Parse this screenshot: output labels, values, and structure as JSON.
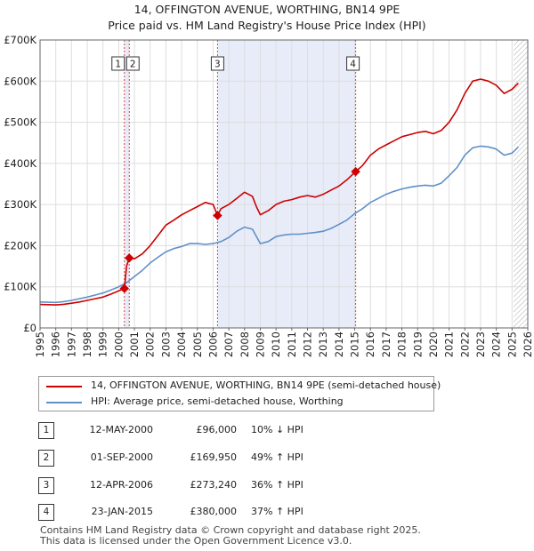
{
  "header": {
    "title": "14, OFFINGTON AVENUE, WORTHING, BN14 9PE",
    "subtitle": "Price paid vs. HM Land Registry's House Price Index (HPI)"
  },
  "chart_data": {
    "type": "line",
    "xlim": [
      1995,
      2026
    ],
    "ylim": [
      0,
      700000
    ],
    "y_ticks": [
      0,
      100000,
      200000,
      300000,
      400000,
      500000,
      600000,
      700000
    ],
    "y_tick_labels": [
      "£0",
      "£100K",
      "£200K",
      "£300K",
      "£400K",
      "£500K",
      "£600K",
      "£700K"
    ],
    "x_ticks": [
      1995,
      1996,
      1997,
      1998,
      1999,
      2000,
      2001,
      2002,
      2003,
      2004,
      2005,
      2006,
      2007,
      2008,
      2009,
      2010,
      2011,
      2012,
      2013,
      2014,
      2015,
      2016,
      2017,
      2018,
      2019,
      2020,
      2021,
      2022,
      2023,
      2024,
      2025,
      2026
    ],
    "x_tick_labels": [
      "1995",
      "1996",
      "1997",
      "1998",
      "1999",
      "2000",
      "2001",
      "2002",
      "2003",
      "2004",
      "2005",
      "2006",
      "2007",
      "2008",
      "2009",
      "2010",
      "2011",
      "2012",
      "2013",
      "2014",
      "2015",
      "2016",
      "2017",
      "2018",
      "2019",
      "2020",
      "2021",
      "2022",
      "2023",
      "2024",
      "2025",
      "2026"
    ],
    "grid": true,
    "shaded_ranges": [
      [
        2000.36,
        2000.67
      ],
      [
        2006.28,
        2015.06
      ]
    ],
    "forecast_start": 2025.1,
    "series": [
      {
        "name": "14, OFFINGTON AVENUE, WORTHING, BN14 9PE (semi-detached house)",
        "color": "#cc0000",
        "points": [
          [
            1995.0,
            57000
          ],
          [
            1995.5,
            56500
          ],
          [
            1996.0,
            56000
          ],
          [
            1996.5,
            57500
          ],
          [
            1997.0,
            60000
          ],
          [
            1997.5,
            63000
          ],
          [
            1998.0,
            67000
          ],
          [
            1998.5,
            71000
          ],
          [
            1999.0,
            75000
          ],
          [
            1999.5,
            82000
          ],
          [
            2000.0,
            90000
          ],
          [
            2000.36,
            96000
          ],
          [
            2000.5,
            150000
          ],
          [
            2000.67,
            169950
          ],
          [
            2001.0,
            168000
          ],
          [
            2001.5,
            180000
          ],
          [
            2002.0,
            200000
          ],
          [
            2002.5,
            225000
          ],
          [
            2003.0,
            250000
          ],
          [
            2003.5,
            262000
          ],
          [
            2004.0,
            275000
          ],
          [
            2004.5,
            285000
          ],
          [
            2005.0,
            295000
          ],
          [
            2005.5,
            305000
          ],
          [
            2006.0,
            300000
          ],
          [
            2006.28,
            273240
          ],
          [
            2006.5,
            290000
          ],
          [
            2007.0,
            300000
          ],
          [
            2007.5,
            315000
          ],
          [
            2008.0,
            330000
          ],
          [
            2008.5,
            320000
          ],
          [
            2008.75,
            295000
          ],
          [
            2009.0,
            275000
          ],
          [
            2009.5,
            285000
          ],
          [
            2010.0,
            300000
          ],
          [
            2010.5,
            308000
          ],
          [
            2011.0,
            312000
          ],
          [
            2011.5,
            318000
          ],
          [
            2012.0,
            322000
          ],
          [
            2012.5,
            318000
          ],
          [
            2013.0,
            325000
          ],
          [
            2013.5,
            335000
          ],
          [
            2014.0,
            345000
          ],
          [
            2014.5,
            360000
          ],
          [
            2015.06,
            380000
          ],
          [
            2015.5,
            395000
          ],
          [
            2016.0,
            420000
          ],
          [
            2016.5,
            435000
          ],
          [
            2017.0,
            445000
          ],
          [
            2017.5,
            455000
          ],
          [
            2018.0,
            465000
          ],
          [
            2018.5,
            470000
          ],
          [
            2019.0,
            475000
          ],
          [
            2019.5,
            478000
          ],
          [
            2020.0,
            472000
          ],
          [
            2020.5,
            480000
          ],
          [
            2021.0,
            500000
          ],
          [
            2021.5,
            530000
          ],
          [
            2022.0,
            570000
          ],
          [
            2022.5,
            600000
          ],
          [
            2023.0,
            605000
          ],
          [
            2023.5,
            600000
          ],
          [
            2024.0,
            590000
          ],
          [
            2024.5,
            570000
          ],
          [
            2025.0,
            580000
          ],
          [
            2025.4,
            595000
          ]
        ]
      },
      {
        "name": "HPI: Average price, semi-detached house, Worthing",
        "color": "#6090c8",
        "points": [
          [
            1995.0,
            63000
          ],
          [
            1995.5,
            62500
          ],
          [
            1996.0,
            62000
          ],
          [
            1996.5,
            64000
          ],
          [
            1997.0,
            67000
          ],
          [
            1997.5,
            71000
          ],
          [
            1998.0,
            75000
          ],
          [
            1998.5,
            80000
          ],
          [
            1999.0,
            85000
          ],
          [
            1999.5,
            92000
          ],
          [
            2000.0,
            100000
          ],
          [
            2000.5,
            110000
          ],
          [
            2001.0,
            125000
          ],
          [
            2001.5,
            140000
          ],
          [
            2002.0,
            158000
          ],
          [
            2002.5,
            172000
          ],
          [
            2003.0,
            185000
          ],
          [
            2003.5,
            193000
          ],
          [
            2004.0,
            198000
          ],
          [
            2004.5,
            205000
          ],
          [
            2005.0,
            205000
          ],
          [
            2005.5,
            203000
          ],
          [
            2006.0,
            205000
          ],
          [
            2006.5,
            210000
          ],
          [
            2007.0,
            220000
          ],
          [
            2007.5,
            235000
          ],
          [
            2008.0,
            245000
          ],
          [
            2008.5,
            240000
          ],
          [
            2009.0,
            205000
          ],
          [
            2009.5,
            210000
          ],
          [
            2010.0,
            222000
          ],
          [
            2010.5,
            226000
          ],
          [
            2011.0,
            228000
          ],
          [
            2011.5,
            228000
          ],
          [
            2012.0,
            230000
          ],
          [
            2012.5,
            232000
          ],
          [
            2013.0,
            235000
          ],
          [
            2013.5,
            242000
          ],
          [
            2014.0,
            252000
          ],
          [
            2014.5,
            262000
          ],
          [
            2015.0,
            278000
          ],
          [
            2015.5,
            290000
          ],
          [
            2016.0,
            305000
          ],
          [
            2016.5,
            315000
          ],
          [
            2017.0,
            325000
          ],
          [
            2017.5,
            332000
          ],
          [
            2018.0,
            338000
          ],
          [
            2018.5,
            342000
          ],
          [
            2019.0,
            345000
          ],
          [
            2019.5,
            347000
          ],
          [
            2020.0,
            345000
          ],
          [
            2020.5,
            352000
          ],
          [
            2021.0,
            370000
          ],
          [
            2021.5,
            390000
          ],
          [
            2022.0,
            420000
          ],
          [
            2022.5,
            438000
          ],
          [
            2023.0,
            442000
          ],
          [
            2023.5,
            440000
          ],
          [
            2024.0,
            435000
          ],
          [
            2024.5,
            420000
          ],
          [
            2025.0,
            425000
          ],
          [
            2025.4,
            440000
          ]
        ]
      }
    ],
    "transactions": [
      {
        "label": "1",
        "x": 2000.36,
        "y": 96000
      },
      {
        "label": "2",
        "x": 2000.67,
        "y": 169950
      },
      {
        "label": "3",
        "x": 2006.28,
        "y": 273240
      },
      {
        "label": "4",
        "x": 2015.06,
        "y": 380000
      }
    ]
  },
  "legend": {
    "items": [
      {
        "label": "14, OFFINGTON AVENUE, WORTHING, BN14 9PE (semi-detached house)",
        "color": "#cc0000"
      },
      {
        "label": "HPI: Average price, semi-detached house, Worthing",
        "color": "#6090c8"
      }
    ]
  },
  "table": {
    "rows": [
      {
        "num": "1",
        "date": "12-MAY-2000",
        "price": "£96,000",
        "hpi": "10% ↓ HPI"
      },
      {
        "num": "2",
        "date": "01-SEP-2000",
        "price": "£169,950",
        "hpi": "49% ↑ HPI"
      },
      {
        "num": "3",
        "date": "12-APR-2006",
        "price": "£273,240",
        "hpi": "36% ↑ HPI"
      },
      {
        "num": "4",
        "date": "23-JAN-2015",
        "price": "£380,000",
        "hpi": "37% ↑ HPI"
      }
    ]
  },
  "footer": {
    "line1": "Contains HM Land Registry data © Crown copyright and database right 2025.",
    "line2": "This data is licensed under the Open Government Licence v3.0."
  }
}
